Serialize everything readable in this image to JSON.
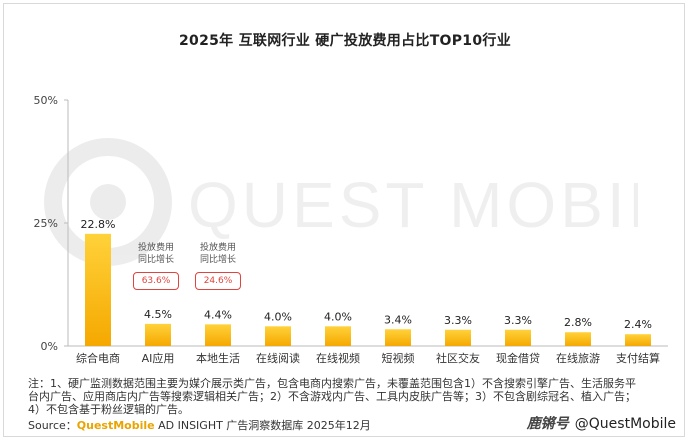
{
  "title": "2025年 互联网行业 硬广投放费用占比TOP10行业",
  "watermark_text": "QUEST MOBILE",
  "annotations": [
    {
      "label_line1": "投放费用",
      "label_line2": "同比增长",
      "value": "63.6%",
      "category": "AI应用"
    },
    {
      "label_line1": "投放费用",
      "label_line2": "同比增长",
      "value": "24.6%",
      "category": "本地生活"
    }
  ],
  "note": "注：1、硬广监测数据范围主要为媒介展示类广告，包含电商内搜索广告，未覆盖范围包含1）不含搜索引擎广告、生活服务平台内广告、应用商店内广告等搜索逻辑相关广告；2）不含游戏内广告、工具内皮肤广告等；3）不包含剧综冠名、植入广告；4）不包含基于粉丝逻辑的广告。",
  "source": {
    "prefix": "Source：",
    "brand": "QuestMobile",
    "rest": " AD INSIGHT 广告洞察数据库 2025年12月"
  },
  "credit": {
    "logo": "鹿锵号",
    "handle": "@QuestMobile"
  },
  "colors": {
    "bar_top": "#ffd23a",
    "bar_bottom": "#f5a800",
    "axis": "#bbbbbb",
    "growth_border": "#e0443e"
  },
  "chart_data": {
    "type": "bar",
    "categories": [
      "综合电商",
      "AI应用",
      "本地生活",
      "在线阅读",
      "在线视频",
      "短视频",
      "社区交友",
      "现金借贷",
      "在线旅游",
      "支付结算"
    ],
    "values": [
      22.8,
      4.5,
      4.4,
      4.0,
      4.0,
      3.4,
      3.3,
      3.3,
      2.8,
      2.4
    ],
    "value_labels": [
      "22.8%",
      "4.5%",
      "4.4%",
      "4.0%",
      "4.0%",
      "3.4%",
      "3.3%",
      "3.3%",
      "2.8%",
      "2.4%"
    ],
    "yticks": [
      "0%",
      "25%",
      "50%"
    ],
    "ytick_values": [
      0,
      25,
      50
    ],
    "ylim": [
      0,
      50
    ],
    "title": "2025年 互联网行业 硬广投放费用占比TOP10行业",
    "xlabel": "",
    "ylabel": "",
    "grid": false,
    "legend": "none"
  }
}
